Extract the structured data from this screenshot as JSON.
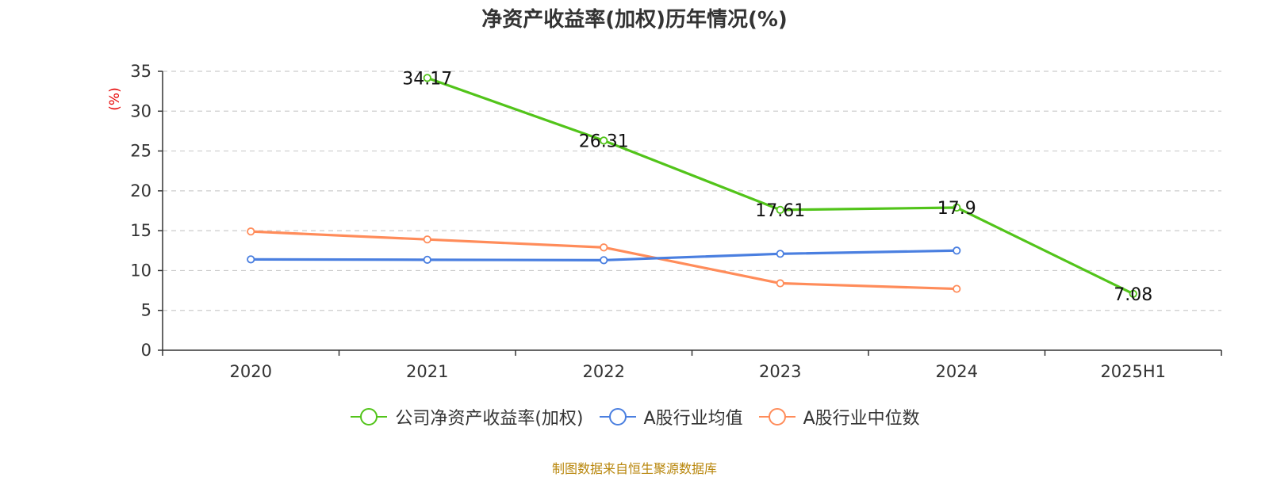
{
  "chart_data": {
    "type": "line",
    "title": "净资产收益率(加权)历年情况(%)",
    "ylabel": "(%)",
    "xlabel": "",
    "categories": [
      "2020",
      "2021",
      "2022",
      "2023",
      "2024",
      "2025H1"
    ],
    "ylim": [
      0,
      35
    ],
    "yticks": [
      0,
      5,
      10,
      15,
      20,
      25,
      30,
      35
    ],
    "grid": true,
    "legend_position": "bottom",
    "series": [
      {
        "name": "公司净资产收益率(加权)",
        "color": "#52c41a",
        "values": [
          null,
          34.17,
          26.31,
          17.61,
          17.9,
          7.08
        ],
        "show_labels": true
      },
      {
        "name": "A股行业均值",
        "color": "#4a7fe0",
        "values": [
          11.4,
          11.35,
          11.3,
          12.1,
          12.5,
          null
        ],
        "show_labels": false
      },
      {
        "name": "A股行业中位数",
        "color": "#ff8c5a",
        "values": [
          14.9,
          13.9,
          12.9,
          8.4,
          7.7,
          null
        ],
        "show_labels": false
      }
    ]
  },
  "source": "制图数据来自恒生聚源数据库"
}
